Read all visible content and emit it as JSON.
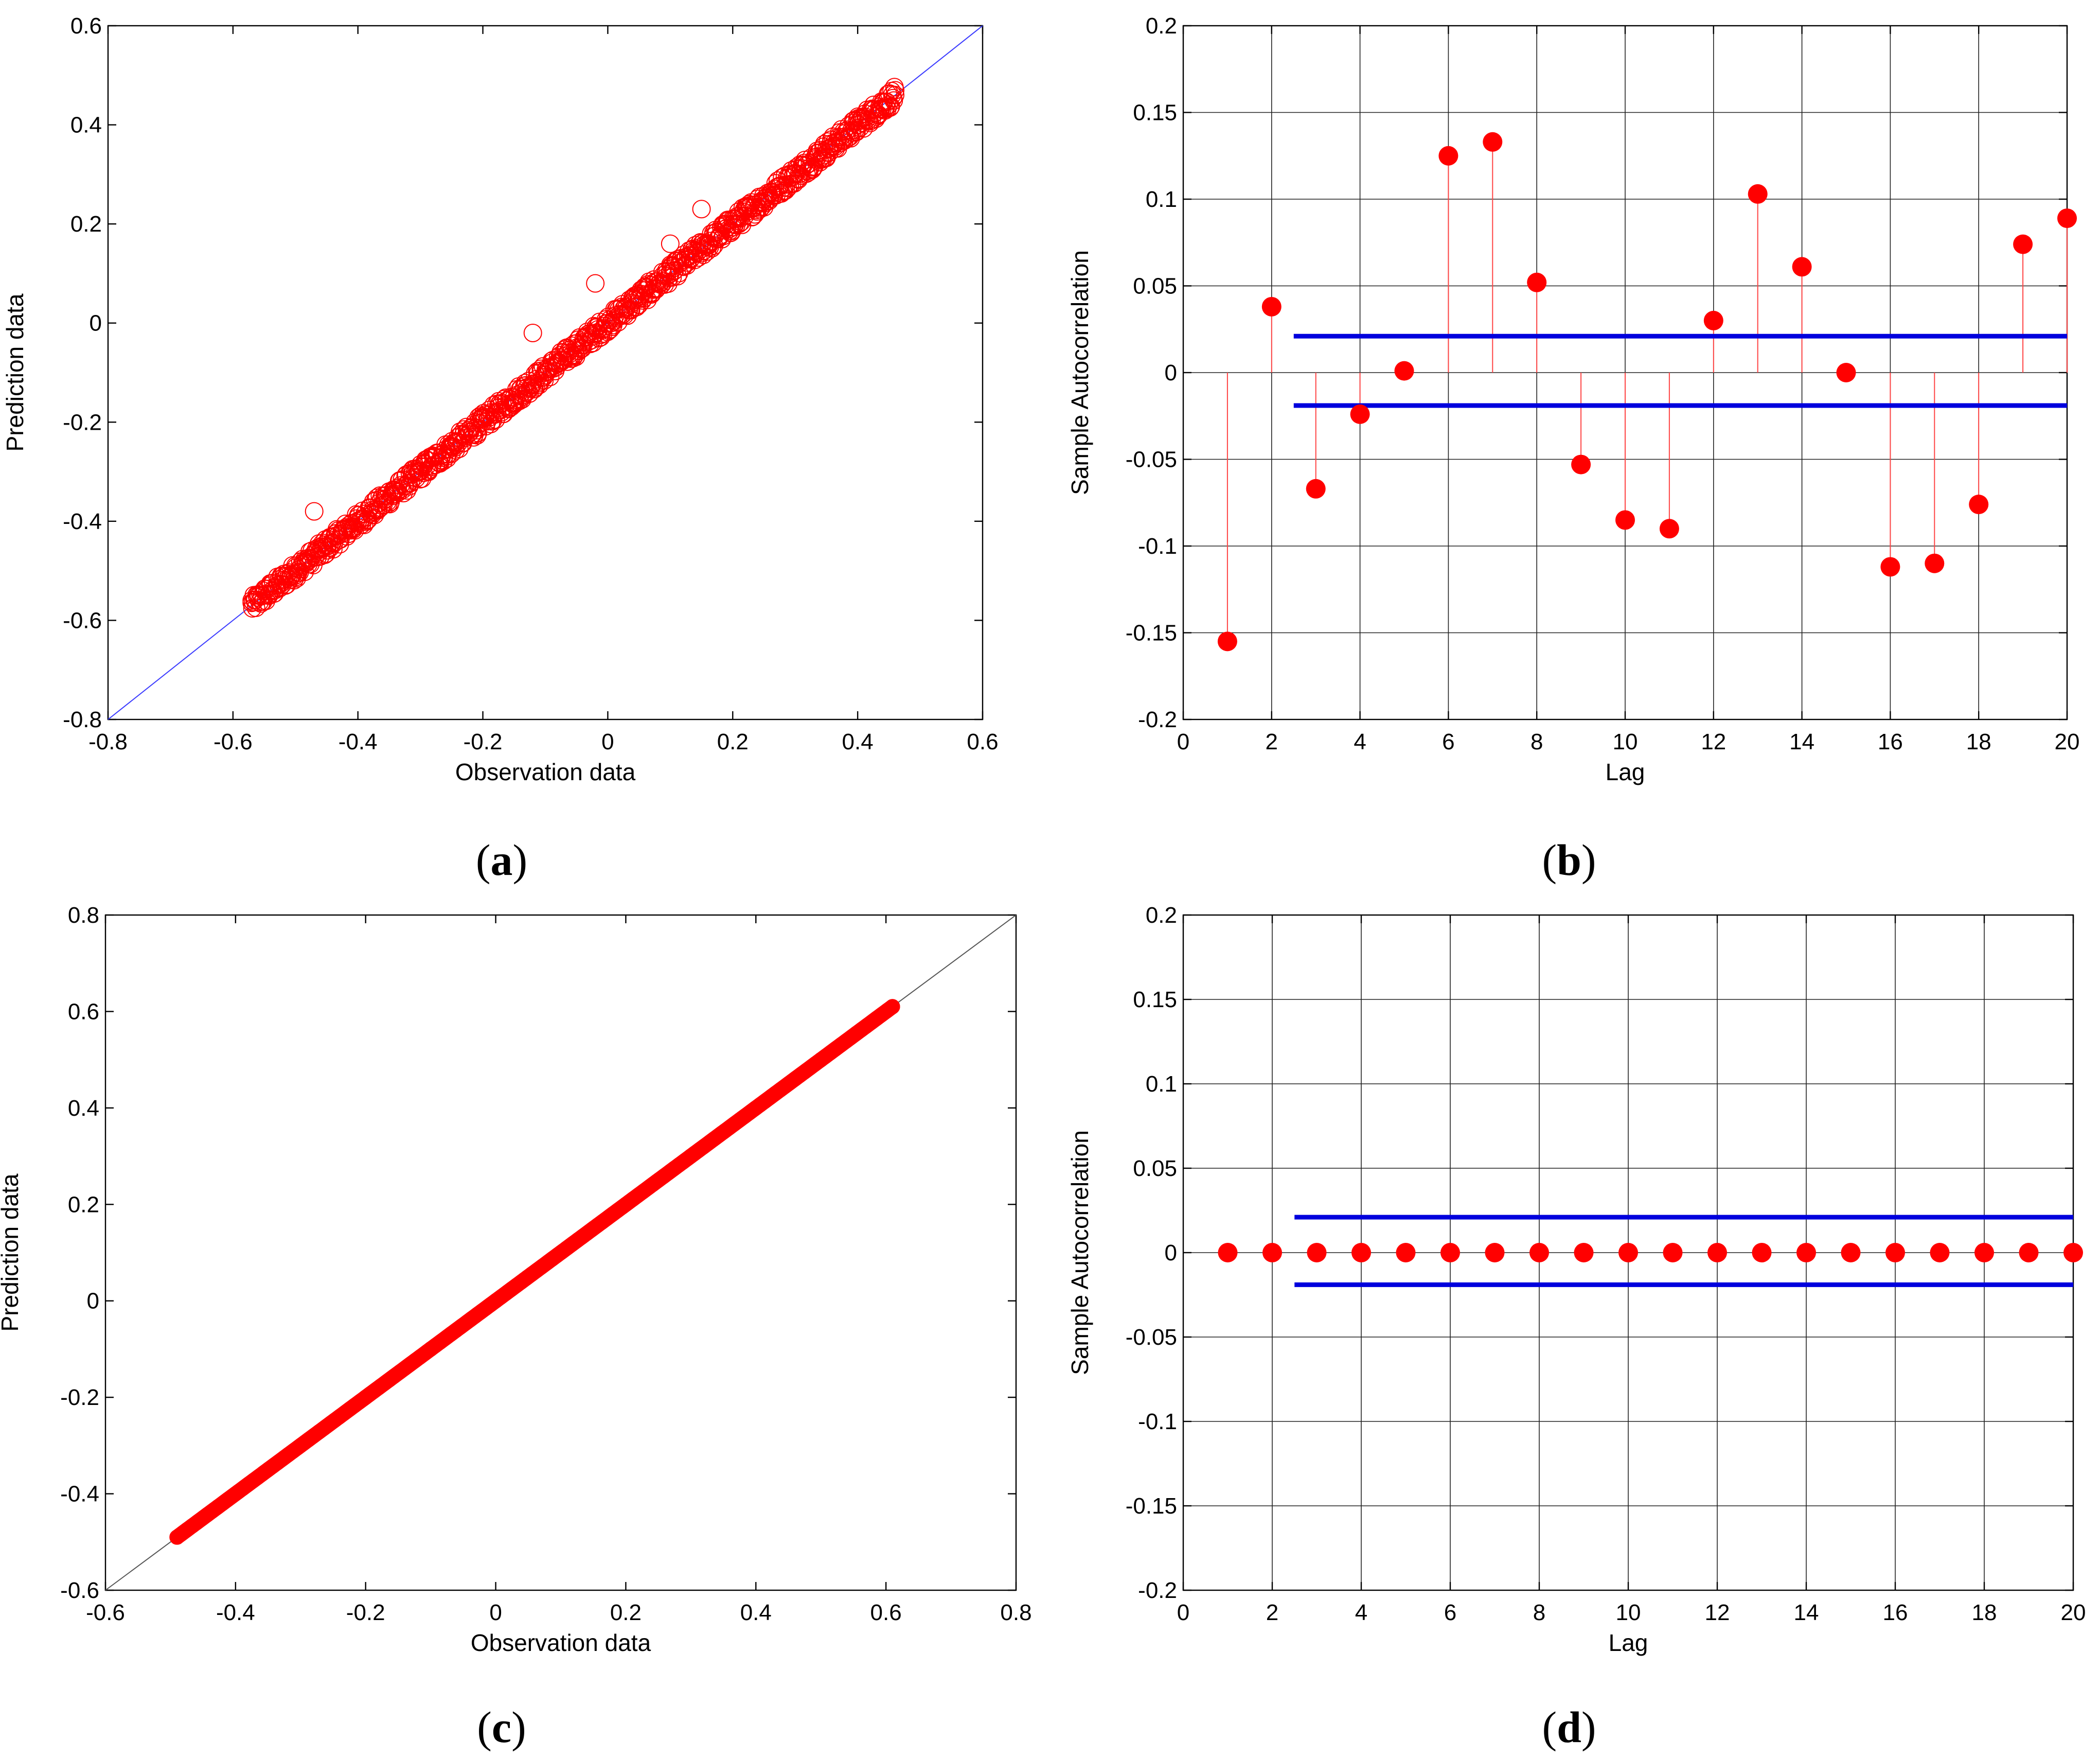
{
  "panel_labels": {
    "a": {
      "open": "(",
      "letter": "a",
      "close": ")"
    },
    "b": {
      "open": "(",
      "letter": "b",
      "close": ")"
    },
    "c": {
      "open": "(",
      "letter": "c",
      "close": ")"
    },
    "d": {
      "open": "(",
      "letter": "d",
      "close": ")"
    }
  },
  "chart_data": [
    {
      "id": "a",
      "type": "scatter",
      "title": "",
      "xlabel": "Observation data",
      "ylabel": "Prediction data",
      "xlim": [
        -0.8,
        0.6
      ],
      "ylim": [
        -0.8,
        0.6
      ],
      "xticks": [
        -0.8,
        -0.6,
        -0.4,
        -0.2,
        0,
        0.2,
        0.4,
        0.6
      ],
      "yticks": [
        -0.8,
        -0.6,
        -0.4,
        -0.2,
        0,
        0.2,
        0.4,
        0.6
      ],
      "xtick_labels": [
        "-0.8",
        "-0.6",
        "-0.4",
        "-0.2",
        "0",
        "0.2",
        "0.4",
        "0.6"
      ],
      "ytick_labels": [
        "-0.8",
        "-0.6",
        "-0.4",
        "-0.2",
        "0",
        "0.2",
        "0.4",
        "0.6"
      ],
      "grid": false,
      "reference_line": {
        "from": [
          -0.8,
          -0.8
        ],
        "to": [
          0.6,
          0.6
        ],
        "color": "#3a3aff"
      },
      "marker": {
        "shape": "open-circle",
        "color": "#ff0000"
      },
      "points_range": {
        "x_min": -0.57,
        "x_max": 0.46
      },
      "points_sample": [
        {
          "x": -0.57,
          "y": -0.56
        },
        {
          "x": -0.54,
          "y": -0.53
        },
        {
          "x": -0.5,
          "y": -0.49
        },
        {
          "x": -0.47,
          "y": -0.38
        },
        {
          "x": -0.45,
          "y": -0.45
        },
        {
          "x": -0.4,
          "y": -0.4
        },
        {
          "x": -0.35,
          "y": -0.34
        },
        {
          "x": -0.3,
          "y": -0.3
        },
        {
          "x": -0.25,
          "y": -0.25
        },
        {
          "x": -0.2,
          "y": -0.2
        },
        {
          "x": -0.15,
          "y": -0.15
        },
        {
          "x": -0.12,
          "y": -0.02
        },
        {
          "x": -0.1,
          "y": -0.1
        },
        {
          "x": -0.05,
          "y": -0.05
        },
        {
          "x": -0.02,
          "y": 0.08
        },
        {
          "x": 0,
          "y": 0
        },
        {
          "x": 0.05,
          "y": 0.05
        },
        {
          "x": 0.1,
          "y": 0.16
        },
        {
          "x": 0.1,
          "y": 0.1
        },
        {
          "x": 0.15,
          "y": 0.23
        },
        {
          "x": 0.15,
          "y": 0.15
        },
        {
          "x": 0.2,
          "y": 0.2
        },
        {
          "x": 0.25,
          "y": 0.25
        },
        {
          "x": 0.3,
          "y": 0.3
        },
        {
          "x": 0.35,
          "y": 0.35
        },
        {
          "x": 0.4,
          "y": 0.4
        },
        {
          "x": 0.46,
          "y": 0.46
        }
      ]
    },
    {
      "id": "b",
      "type": "stem",
      "title": "",
      "xlabel": "Lag",
      "ylabel": "Sample Autocorrelation",
      "xlim": [
        0,
        20
      ],
      "ylim": [
        -0.2,
        0.2
      ],
      "xticks": [
        0,
        2,
        4,
        6,
        8,
        10,
        12,
        14,
        16,
        18,
        20
      ],
      "yticks": [
        -0.2,
        -0.15,
        -0.1,
        -0.05,
        0,
        0.05,
        0.1,
        0.15,
        0.2
      ],
      "xtick_labels": [
        "0",
        "2",
        "4",
        "6",
        "8",
        "10",
        "12",
        "14",
        "16",
        "18",
        "20"
      ],
      "ytick_labels": [
        "-0.2",
        "-0.15",
        "-0.1",
        "-0.05",
        "0",
        "0.05",
        "0.1",
        "0.15",
        "0.2"
      ],
      "grid": true,
      "lags": [
        1,
        2,
        3,
        4,
        5,
        6,
        7,
        8,
        9,
        10,
        11,
        12,
        13,
        14,
        15,
        16,
        17,
        18,
        19,
        20
      ],
      "values": [
        -0.155,
        0.038,
        -0.067,
        -0.024,
        0.001,
        0.125,
        0.133,
        0.052,
        -0.053,
        -0.085,
        -0.09,
        0.03,
        0.103,
        0.061,
        0.0,
        -0.112,
        -0.11,
        -0.076,
        0.074,
        0.089
      ],
      "confidence_bounds": {
        "upper": 0.021,
        "lower": -0.019,
        "x_start": 2.5,
        "x_end": 20
      },
      "marker": {
        "shape": "filled-circle",
        "color": "#ff0000"
      },
      "bound_color": "#0000dd"
    },
    {
      "id": "c",
      "type": "scatter",
      "title": "",
      "xlabel": "Observation data",
      "ylabel": "Prediction data",
      "xlim": [
        -0.6,
        0.8
      ],
      "ylim": [
        -0.6,
        0.8
      ],
      "xticks": [
        -0.6,
        -0.4,
        -0.2,
        0,
        0.2,
        0.4,
        0.6,
        0.8
      ],
      "yticks": [
        -0.6,
        -0.4,
        -0.2,
        0,
        0.2,
        0.4,
        0.6,
        0.8
      ],
      "xtick_labels": [
        "-0.6",
        "-0.4",
        "-0.2",
        "0",
        "0.2",
        "0.4",
        "0.6",
        "0.8"
      ],
      "ytick_labels": [
        "-0.6",
        "-0.4",
        "-0.2",
        "0",
        "0.2",
        "0.4",
        "0.6",
        "0.8"
      ],
      "grid": false,
      "reference_line": {
        "from": [
          -0.6,
          -0.6
        ],
        "to": [
          0.8,
          0.8
        ],
        "color": "#555555"
      },
      "marker": {
        "shape": "filled-circle",
        "color": "#ff0000"
      },
      "points_range": {
        "x_min": -0.49,
        "x_max": 0.61
      },
      "points_sample": [
        {
          "x": -0.49,
          "y": -0.49
        },
        {
          "x": -0.4,
          "y": -0.4
        },
        {
          "x": -0.3,
          "y": -0.3
        },
        {
          "x": -0.2,
          "y": -0.2
        },
        {
          "x": -0.1,
          "y": -0.1
        },
        {
          "x": 0,
          "y": 0
        },
        {
          "x": 0.1,
          "y": 0.1
        },
        {
          "x": 0.2,
          "y": 0.2
        },
        {
          "x": 0.3,
          "y": 0.3
        },
        {
          "x": 0.4,
          "y": 0.4
        },
        {
          "x": 0.5,
          "y": 0.5
        },
        {
          "x": 0.61,
          "y": 0.61
        }
      ]
    },
    {
      "id": "d",
      "type": "stem",
      "title": "",
      "xlabel": "Lag",
      "ylabel": "Sample Autocorrelation",
      "xlim": [
        0,
        20
      ],
      "ylim": [
        -0.2,
        0.2
      ],
      "xticks": [
        0,
        2,
        4,
        6,
        8,
        10,
        12,
        14,
        16,
        18,
        20
      ],
      "yticks": [
        -0.2,
        -0.15,
        -0.1,
        -0.05,
        0,
        0.05,
        0.1,
        0.15,
        0.2
      ],
      "xtick_labels": [
        "0",
        "2",
        "4",
        "6",
        "8",
        "10",
        "12",
        "14",
        "16",
        "18",
        "20"
      ],
      "ytick_labels": [
        "-0.2",
        "-0.15",
        "-0.1",
        "-0.05",
        "0",
        "0.05",
        "0.1",
        "0.15",
        "0.2"
      ],
      "grid": true,
      "lags": [
        1,
        2,
        3,
        4,
        5,
        6,
        7,
        8,
        9,
        10,
        11,
        12,
        13,
        14,
        15,
        16,
        17,
        18,
        19,
        20
      ],
      "values": [
        0,
        0,
        0,
        0,
        0,
        0,
        0,
        0,
        0,
        0,
        0,
        0,
        0,
        0,
        0,
        0,
        0,
        0,
        0,
        0
      ],
      "confidence_bounds": {
        "upper": 0.021,
        "lower": -0.019,
        "x_start": 2.5,
        "x_end": 20
      },
      "marker": {
        "shape": "filled-circle",
        "color": "#ff0000"
      },
      "bound_color": "#0000dd"
    }
  ]
}
